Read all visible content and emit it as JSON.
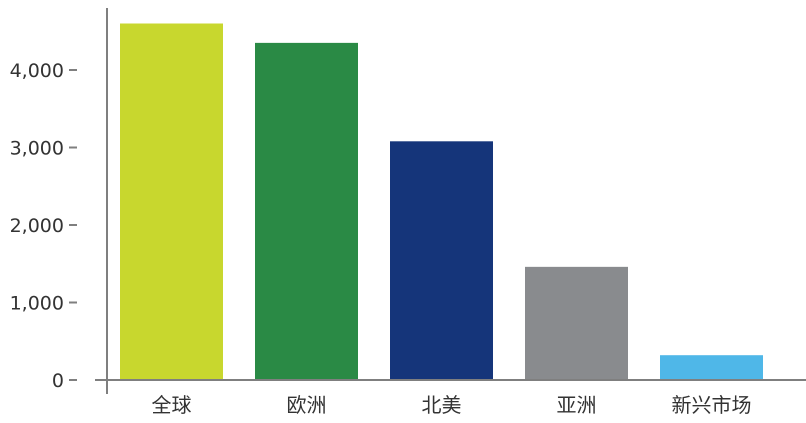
{
  "chart_data": {
    "type": "bar",
    "categories": [
      "全球",
      "欧洲",
      "北美",
      "亚洲",
      "新兴市场"
    ],
    "values": [
      4600,
      4350,
      3080,
      1460,
      320
    ],
    "colors": [
      "#c8d72e",
      "#2a8a45",
      "#15357a",
      "#898b8e",
      "#4fb7e8"
    ],
    "yticks": [
      0,
      1000,
      2000,
      3000,
      4000
    ],
    "ytick_labels": [
      "0",
      "1,000",
      "2,000",
      "3,000",
      "4,000"
    ],
    "ylim": [
      0,
      4750
    ],
    "grid": false,
    "legend": "none"
  }
}
